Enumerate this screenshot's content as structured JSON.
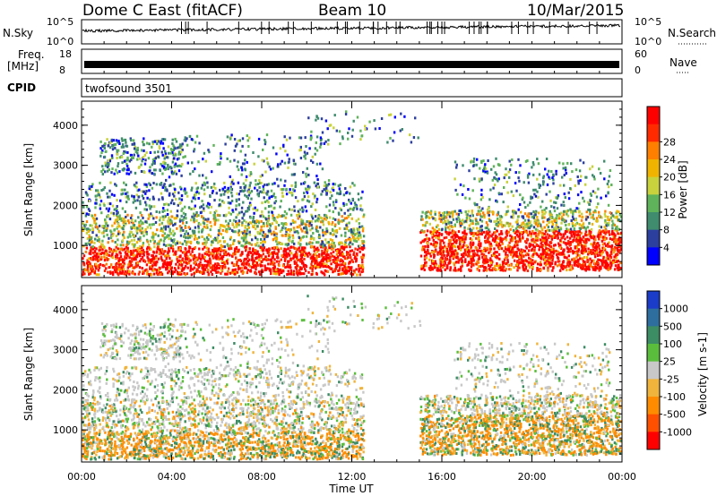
{
  "header": {
    "station": "Dome C East (fitACF)",
    "beam": "Beam 10",
    "date": "10/Mar/2015"
  },
  "strips": {
    "nsky": {
      "label": "N.Sky",
      "ticks": [
        "10^5",
        "10^0"
      ]
    },
    "nsearch": {
      "label": "N.Search",
      "ticks": [
        "10^5",
        "10^0"
      ]
    },
    "freq": {
      "label1": "Freq.",
      "label2": "[MHz]",
      "ticks": [
        "18",
        "8"
      ]
    },
    "nave": {
      "label": "Nave",
      "ticks": [
        "60",
        "0"
      ]
    },
    "cpid": {
      "label": "CPID",
      "value": "twofsound 3501"
    }
  },
  "chart_data": [
    {
      "type": "heatmap",
      "name": "power-panel",
      "ylabel": "Slant Range [km]",
      "yticks": [
        1000,
        2000,
        3000,
        4000
      ],
      "ylim": [
        200,
        4600
      ],
      "xlabel": "Time UT",
      "xticks": [
        "00:00",
        "04:00",
        "08:00",
        "12:00",
        "16:00",
        "20:00",
        "00:00"
      ],
      "xlim_hours": [
        0,
        24
      ],
      "colorbar": {
        "label": "Power [dB]",
        "ticks": [
          "4",
          "8",
          "12",
          "16",
          "20",
          "24",
          "28"
        ],
        "colors": [
          "#0000ff",
          "#2c3f9e",
          "#3f8c6e",
          "#5fb35a",
          "#c8d23c",
          "#f0b400",
          "#ff7f00",
          "#ff2a00",
          "#ff0000"
        ]
      }
    },
    {
      "type": "heatmap",
      "name": "velocity-panel",
      "ylabel": "Slant Range [km]",
      "yticks": [
        1000,
        2000,
        3000,
        4000
      ],
      "ylim": [
        200,
        4600
      ],
      "xlabel": "Time UT",
      "xticks": [
        "00:00",
        "04:00",
        "08:00",
        "12:00",
        "16:00",
        "20:00",
        "00:00"
      ],
      "xlim_hours": [
        0,
        24
      ],
      "colorbar": {
        "label": "Velocity [m s-1]",
        "ticks": [
          "1000",
          "500",
          "100",
          "25",
          "-25",
          "-100",
          "-500",
          "-1000"
        ],
        "colors": [
          "#1a3cc8",
          "#2d6e9e",
          "#3c8c64",
          "#5abe3c",
          "#c8c8c8",
          "#f0b43c",
          "#ff8c00",
          "#ff5000",
          "#ff0000"
        ]
      }
    }
  ],
  "xaxis": {
    "label": "Time UT",
    "ticks": [
      "00:00",
      "04:00",
      "08:00",
      "12:00",
      "16:00",
      "20:00",
      "00:00"
    ]
  }
}
